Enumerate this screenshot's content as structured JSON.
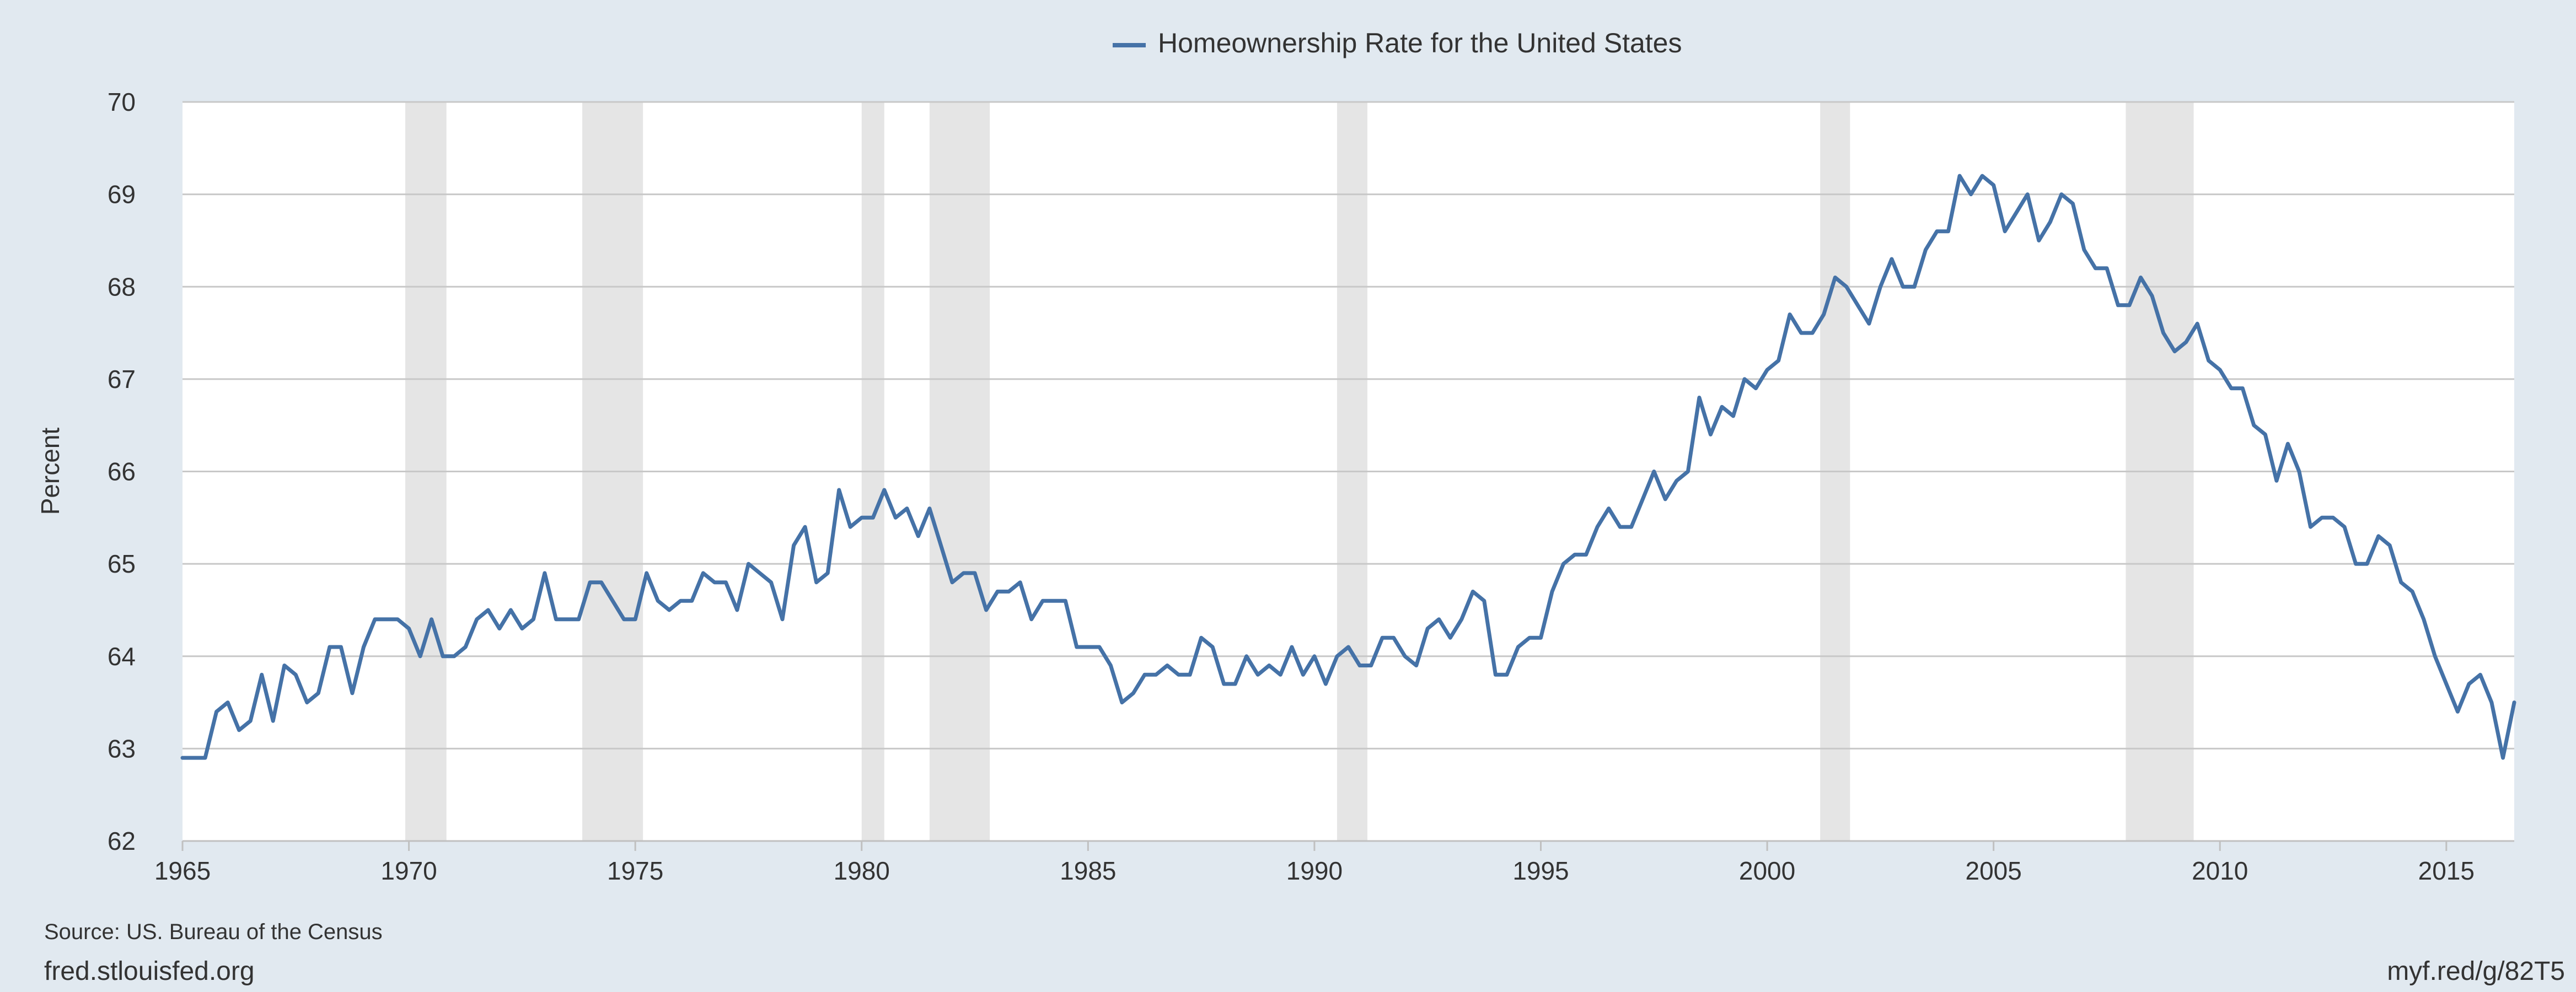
{
  "legend": {
    "series_name": "Homeownership Rate for the United States",
    "color": "#4572a7"
  },
  "footer": {
    "source": "Source: US. Bureau of the Census",
    "site": "fred.stlouisfed.org",
    "short_link": "myf.red/g/82T5"
  },
  "chart_data": {
    "type": "line",
    "title": "",
    "xlabel": "",
    "ylabel": "Percent",
    "xlim": [
      1965,
      2016.5
    ],
    "ylim": [
      62,
      70
    ],
    "x_ticks": [
      1965,
      1970,
      1975,
      1980,
      1985,
      1990,
      1995,
      2000,
      2005,
      2010,
      2015
    ],
    "y_ticks": [
      62,
      63,
      64,
      65,
      66,
      67,
      68,
      69,
      70
    ],
    "grid": true,
    "legend_position": "top-center",
    "series": [
      {
        "name": "Homeownership Rate for the United States",
        "color": "#4572a7",
        "x": [
          1965.0,
          1965.25,
          1965.5,
          1965.75,
          1966.0,
          1966.25,
          1966.5,
          1966.75,
          1967.0,
          1967.25,
          1967.5,
          1967.75,
          1968.0,
          1968.25,
          1968.5,
          1968.75,
          1969.0,
          1969.25,
          1969.5,
          1969.75,
          1970.0,
          1970.25,
          1970.5,
          1970.75,
          1971.0,
          1971.25,
          1971.5,
          1971.75,
          1972.0,
          1972.25,
          1972.5,
          1972.75,
          1973.0,
          1973.25,
          1973.5,
          1973.75,
          1974.0,
          1974.25,
          1974.5,
          1974.75,
          1975.0,
          1975.25,
          1975.5,
          1975.75,
          1976.0,
          1976.25,
          1976.5,
          1976.75,
          1977.0,
          1977.25,
          1977.5,
          1977.75,
          1978.0,
          1978.25,
          1978.5,
          1978.75,
          1979.0,
          1979.25,
          1979.5,
          1979.75,
          1980.0,
          1980.25,
          1980.5,
          1980.75,
          1981.0,
          1981.25,
          1981.5,
          1981.75,
          1982.0,
          1982.25,
          1982.5,
          1982.75,
          1983.0,
          1983.25,
          1983.5,
          1983.75,
          1984.0,
          1984.25,
          1984.5,
          1984.75,
          1985.0,
          1985.25,
          1985.5,
          1985.75,
          1986.0,
          1986.25,
          1986.5,
          1986.75,
          1987.0,
          1987.25,
          1987.5,
          1987.75,
          1988.0,
          1988.25,
          1988.5,
          1988.75,
          1989.0,
          1989.25,
          1989.5,
          1989.75,
          1990.0,
          1990.25,
          1990.5,
          1990.75,
          1991.0,
          1991.25,
          1991.5,
          1991.75,
          1992.0,
          1992.25,
          1992.5,
          1992.75,
          1993.0,
          1993.25,
          1993.5,
          1993.75,
          1994.0,
          1994.25,
          1994.5,
          1994.75,
          1995.0,
          1995.25,
          1995.5,
          1995.75,
          1996.0,
          1996.25,
          1996.5,
          1996.75,
          1997.0,
          1997.25,
          1997.5,
          1997.75,
          1998.0,
          1998.25,
          1998.5,
          1998.75,
          1999.0,
          1999.25,
          1999.5,
          1999.75,
          2000.0,
          2000.25,
          2000.5,
          2000.75,
          2001.0,
          2001.25,
          2001.5,
          2001.75,
          2002.0,
          2002.25,
          2002.5,
          2002.75,
          2003.0,
          2003.25,
          2003.5,
          2003.75,
          2004.0,
          2004.25,
          2004.5,
          2004.75,
          2005.0,
          2005.25,
          2005.5,
          2005.75,
          2006.0,
          2006.25,
          2006.5,
          2006.75,
          2007.0,
          2007.25,
          2007.5,
          2007.75,
          2008.0,
          2008.25,
          2008.5,
          2008.75,
          2009.0,
          2009.25,
          2009.5,
          2009.75,
          2010.0,
          2010.25,
          2010.5,
          2010.75,
          2011.0,
          2011.25,
          2011.5,
          2011.75,
          2012.0,
          2012.25,
          2012.5,
          2012.75,
          2013.0,
          2013.25,
          2013.5,
          2013.75,
          2014.0,
          2014.25,
          2014.5,
          2014.75,
          2015.0,
          2015.25,
          2015.5,
          2015.75,
          2016.0,
          2016.25,
          2016.5
        ],
        "values": [
          62.9,
          62.9,
          62.9,
          63.4,
          63.5,
          63.2,
          63.3,
          63.8,
          63.3,
          63.9,
          63.8,
          63.5,
          63.6,
          64.1,
          64.1,
          63.6,
          64.1,
          64.4,
          64.4,
          64.4,
          64.3,
          64.0,
          64.4,
          64.0,
          64.0,
          64.1,
          64.4,
          64.5,
          64.3,
          64.5,
          64.3,
          64.4,
          64.9,
          64.4,
          64.4,
          64.4,
          64.8,
          64.8,
          64.6,
          64.4,
          64.4,
          64.9,
          64.6,
          64.5,
          64.6,
          64.6,
          64.9,
          64.8,
          64.8,
          64.5,
          65.0,
          64.9,
          64.8,
          64.4,
          65.2,
          65.4,
          64.8,
          64.9,
          65.8,
          65.4,
          65.5,
          65.5,
          65.8,
          65.5,
          65.6,
          65.3,
          65.6,
          65.2,
          64.8,
          64.9,
          64.9,
          64.5,
          64.7,
          64.7,
          64.8,
          64.4,
          64.6,
          64.6,
          64.6,
          64.1,
          64.1,
          64.1,
          63.9,
          63.5,
          63.6,
          63.8,
          63.8,
          63.9,
          63.8,
          63.8,
          64.2,
          64.1,
          63.7,
          63.7,
          64.0,
          63.8,
          63.9,
          63.8,
          64.1,
          63.8,
          64.0,
          63.7,
          64.0,
          64.1,
          63.9,
          63.9,
          64.2,
          64.2,
          64.0,
          63.9,
          64.3,
          64.4,
          64.2,
          64.4,
          64.7,
          64.6,
          63.8,
          63.8,
          64.1,
          64.2,
          64.2,
          64.7,
          65.0,
          65.1,
          65.1,
          65.4,
          65.6,
          65.4,
          65.4,
          65.7,
          66.0,
          65.7,
          65.9,
          66.0,
          66.8,
          66.4,
          66.7,
          66.6,
          67.0,
          66.9,
          67.1,
          67.2,
          67.7,
          67.5,
          67.5,
          67.7,
          68.1,
          68.0,
          67.8,
          67.6,
          68.0,
          68.3,
          68.0,
          68.0,
          68.4,
          68.6,
          68.6,
          69.2,
          69.0,
          69.2,
          69.1,
          68.6,
          68.8,
          69.0,
          68.5,
          68.7,
          69.0,
          68.9,
          68.4,
          68.2,
          68.2,
          67.8,
          67.8,
          68.1,
          67.9,
          67.5,
          67.3,
          67.4,
          67.6,
          67.2,
          67.1,
          66.9,
          66.9,
          66.5,
          66.4,
          65.9,
          66.3,
          66.0,
          65.4,
          65.5,
          65.5,
          65.4,
          65.0,
          65.0,
          65.3,
          65.2,
          64.8,
          64.7,
          64.4,
          64.0,
          63.7,
          63.4,
          63.7,
          63.8,
          63.5,
          62.9,
          63.5
        ]
      }
    ],
    "recessions": [
      [
        1969.92,
        1970.83
      ],
      [
        1973.83,
        1975.17
      ],
      [
        1980.0,
        1980.5
      ],
      [
        1981.5,
        1982.83
      ],
      [
        1990.5,
        1991.17
      ],
      [
        2001.17,
        2001.83
      ],
      [
        2007.92,
        2009.42
      ]
    ]
  }
}
